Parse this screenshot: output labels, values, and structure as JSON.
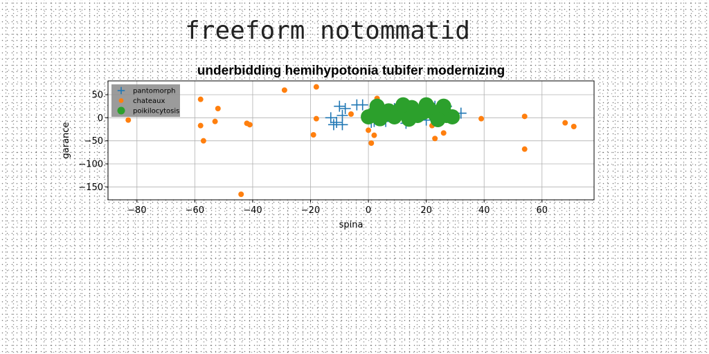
{
  "page": {
    "title": "freeform notommatid"
  },
  "chart_data": {
    "type": "scatter",
    "title": "underbidding hemihypotonia tubifer modernizing",
    "xlabel": "spina",
    "ylabel": "garance",
    "xlim": [
      -90,
      78
    ],
    "ylim": [
      -178,
      80
    ],
    "xticks": [
      -80,
      -60,
      -40,
      -20,
      0,
      20,
      40,
      60
    ],
    "yticks": [
      50,
      0,
      -50,
      -100,
      -150
    ],
    "grid": true,
    "legend_position": "top-left",
    "series": [
      {
        "name": "pantomorph",
        "marker": "plus",
        "color": "#1f77b4",
        "x": [
          -13,
          -11,
          -9,
          -10,
          -8,
          -12,
          -9,
          -4,
          -2,
          2,
          5,
          9,
          12,
          14,
          17,
          20,
          23,
          25,
          28,
          32,
          13,
          6,
          1,
          27
        ],
        "y": [
          0,
          -10,
          -15,
          25,
          20,
          -15,
          5,
          28,
          28,
          -8,
          22,
          20,
          10,
          18,
          2,
          -5,
          25,
          15,
          5,
          10,
          -12,
          -8,
          -10,
          25
        ]
      },
      {
        "name": "chateaux",
        "marker": "circle",
        "color": "#ff7f0e",
        "x": [
          -83,
          -58,
          -58,
          -57,
          -53,
          -52,
          -44,
          -42,
          -41,
          -29,
          -18,
          -19,
          -18,
          -6,
          0,
          1,
          2,
          3,
          11,
          22,
          23,
          26,
          39,
          54,
          54,
          68,
          71
        ],
        "y": [
          -5,
          40,
          -17,
          -50,
          -8,
          20,
          -166,
          -12,
          -15,
          60,
          67,
          -37,
          -2,
          8,
          -27,
          -55,
          -38,
          42,
          36,
          -17,
          -45,
          -33,
          -2,
          3,
          -68,
          -11,
          -19
        ]
      },
      {
        "name": "poikilocytosis",
        "marker": "circle-large",
        "color": "#2ca02c",
        "x": [
          0,
          2,
          3,
          5,
          7,
          9,
          11,
          13,
          15,
          17,
          19,
          21,
          23,
          25,
          27,
          29,
          4,
          14,
          24,
          12,
          20,
          26
        ],
        "y": [
          2,
          8,
          25,
          5,
          15,
          2,
          18,
          10,
          22,
          5,
          12,
          20,
          8,
          15,
          5,
          2,
          -2,
          -3,
          -4,
          28,
          28,
          25
        ]
      }
    ]
  }
}
